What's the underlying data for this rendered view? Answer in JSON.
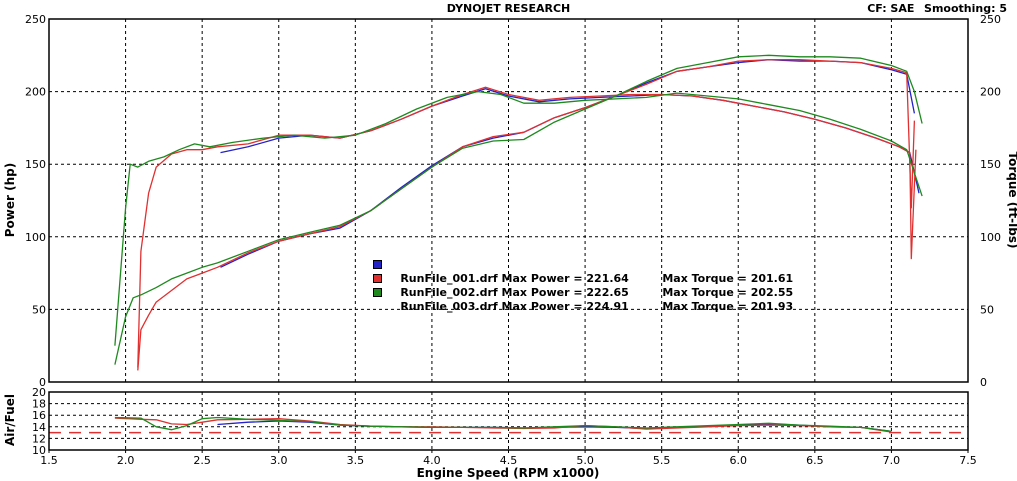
{
  "header": {
    "title": "DYNOJET RESEARCH",
    "cf_label": "CF: SAE",
    "smoothing_label": "Smoothing: 5"
  },
  "chart_data": [
    {
      "type": "line",
      "ylabel_left": "Power (hp)",
      "ylabel_right": "Torque (ft-lbs)",
      "xlim": [
        1.5,
        7.5
      ],
      "ylim": [
        0,
        250
      ],
      "xticks": [
        "1.5",
        "2.0",
        "2.5",
        "3.0",
        "3.5",
        "4.0",
        "4.5",
        "5.0",
        "5.5",
        "6.0",
        "6.5",
        "7.0",
        "7.5"
      ],
      "yticks": [
        "0",
        "50",
        "100",
        "150",
        "200",
        "250"
      ],
      "grid": true,
      "legend": [
        {
          "run": "RunFile_001.drf",
          "power_label": "Max Power = 221.64",
          "torque_label": "Max Torque = 201.61",
          "color": "#2323c8"
        },
        {
          "run": "RunFile_002.drf",
          "power_label": "Max Power = 222.65",
          "torque_label": "Max Torque = 202.55",
          "color": "#e03030"
        },
        {
          "run": "RunFile_003.drf",
          "power_label": "Max Power = 224.91",
          "torque_label": "Max Torque = 201.93",
          "color": "#1e8a1e"
        }
      ],
      "series": [
        {
          "run": "RunFile_001.drf",
          "quantity": "power",
          "color": "#2323c8",
          "x": [
            2.62,
            2.8,
            3.0,
            3.2,
            3.4,
            3.6,
            3.8,
            4.0,
            4.2,
            4.4,
            4.6,
            4.8,
            5.0,
            5.2,
            5.4,
            5.6,
            5.8,
            6.0,
            6.2,
            6.4,
            6.6,
            6.8,
            7.0,
            7.1,
            7.15
          ],
          "y": [
            79,
            88,
            97,
            102,
            106,
            118,
            134,
            149,
            162,
            168,
            172,
            182,
            189,
            197,
            206,
            214,
            217,
            220,
            222,
            221,
            221,
            220,
            215,
            212,
            185
          ]
        },
        {
          "run": "RunFile_001.drf",
          "quantity": "torque",
          "color": "#2323c8",
          "x": [
            2.62,
            2.8,
            3.0,
            3.2,
            3.4,
            3.6,
            3.8,
            4.0,
            4.2,
            4.35,
            4.5,
            4.7,
            4.9,
            5.1,
            5.3,
            5.5,
            5.7,
            5.9,
            6.1,
            6.3,
            6.5,
            6.7,
            6.9,
            7.05,
            7.12,
            7.18
          ],
          "y": [
            158,
            162,
            168,
            170,
            168,
            173,
            181,
            190,
            197,
            202,
            197,
            193,
            195,
            196,
            197,
            198,
            197,
            194,
            190,
            186,
            181,
            175,
            168,
            162,
            158,
            130
          ]
        },
        {
          "run": "RunFile_002.drf",
          "quantity": "power",
          "color": "#e03030",
          "x": [
            2.08,
            2.1,
            2.15,
            2.2,
            2.3,
            2.4,
            2.5,
            2.6,
            2.8,
            3.0,
            3.2,
            3.4,
            3.6,
            3.8,
            4.0,
            4.2,
            4.4,
            4.6,
            4.8,
            5.0,
            5.2,
            5.4,
            5.6,
            5.8,
            6.0,
            6.2,
            6.4,
            6.6,
            6.8,
            7.0,
            7.1,
            7.13,
            7.15
          ],
          "y": [
            8,
            36,
            46,
            55,
            63,
            71,
            75,
            79,
            89,
            97,
            102,
            107,
            118,
            133,
            148,
            162,
            169,
            172,
            182,
            189,
            197,
            205,
            214,
            217,
            221,
            222,
            222,
            221,
            220,
            216,
            213,
            120,
            180
          ]
        },
        {
          "run": "RunFile_002.drf",
          "quantity": "torque",
          "color": "#e03030",
          "x": [
            2.08,
            2.1,
            2.15,
            2.2,
            2.3,
            2.4,
            2.5,
            2.6,
            2.8,
            3.0,
            3.2,
            3.4,
            3.6,
            3.8,
            4.0,
            4.2,
            4.35,
            4.5,
            4.7,
            4.9,
            5.1,
            5.3,
            5.5,
            5.7,
            5.9,
            6.1,
            6.3,
            6.5,
            6.7,
            6.9,
            7.05,
            7.12,
            7.13,
            7.16
          ],
          "y": [
            10,
            90,
            130,
            148,
            157,
            160,
            160,
            162,
            164,
            170,
            170,
            168,
            173,
            181,
            190,
            198,
            203,
            198,
            194,
            196,
            197,
            198,
            198,
            197,
            194,
            190,
            186,
            181,
            175,
            168,
            162,
            158,
            85,
            160
          ]
        },
        {
          "run": "RunFile_003.drf",
          "quantity": "power",
          "color": "#1e8a1e",
          "x": [
            1.93,
            2.0,
            2.05,
            2.1,
            2.2,
            2.3,
            2.4,
            2.5,
            2.6,
            2.8,
            3.0,
            3.2,
            3.4,
            3.6,
            3.8,
            4.0,
            4.2,
            4.4,
            4.6,
            4.8,
            5.0,
            5.2,
            5.4,
            5.6,
            5.8,
            6.0,
            6.2,
            6.4,
            6.6,
            6.8,
            7.0,
            7.1,
            7.15,
            7.2
          ],
          "y": [
            12,
            45,
            58,
            60,
            65,
            71,
            75,
            79,
            82,
            90,
            98,
            103,
            108,
            118,
            133,
            148,
            161,
            166,
            167,
            179,
            188,
            197,
            207,
            216,
            220,
            224,
            225,
            224,
            224,
            223,
            218,
            214,
            200,
            178
          ]
        },
        {
          "run": "RunFile_003.drf",
          "quantity": "torque",
          "color": "#1e8a1e",
          "x": [
            1.93,
            2.0,
            2.03,
            2.08,
            2.15,
            2.25,
            2.35,
            2.45,
            2.55,
            2.7,
            2.9,
            3.1,
            3.3,
            3.5,
            3.7,
            3.9,
            4.1,
            4.3,
            4.45,
            4.6,
            4.8,
            5.0,
            5.2,
            5.4,
            5.6,
            5.8,
            6.0,
            6.2,
            6.4,
            6.6,
            6.8,
            7.0,
            7.1,
            7.2
          ],
          "y": [
            25,
            120,
            150,
            148,
            152,
            155,
            160,
            164,
            162,
            165,
            168,
            170,
            168,
            170,
            178,
            188,
            196,
            200,
            198,
            192,
            192,
            194,
            195,
            196,
            199,
            197,
            195,
            191,
            187,
            181,
            174,
            166,
            160,
            128
          ]
        }
      ]
    },
    {
      "type": "line",
      "ylabel": "Air/Fuel",
      "xlabel": "Engine Speed (RPM x1000)",
      "xlim": [
        1.5,
        7.5
      ],
      "ylim": [
        10,
        20
      ],
      "yticks": [
        "10",
        "12",
        "14",
        "16",
        "18",
        "20"
      ],
      "reference_line": 13.0,
      "grid": true,
      "series": [
        {
          "run": "RunFile_001.drf",
          "color": "#2323c8",
          "x": [
            2.6,
            2.8,
            3.0,
            3.2,
            3.4,
            3.6,
            3.8,
            4.0,
            4.2,
            4.4,
            4.6,
            4.8,
            5.0,
            5.2,
            5.4,
            5.6,
            5.8,
            6.0,
            6.2,
            6.4,
            6.6,
            6.8,
            7.0
          ],
          "y": [
            14.4,
            14.8,
            15.0,
            14.8,
            14.3,
            14.1,
            14.0,
            13.9,
            13.9,
            13.9,
            13.8,
            13.9,
            14.0,
            13.9,
            13.7,
            13.9,
            14.1,
            14.3,
            14.5,
            14.3,
            14.0,
            13.9,
            13.2
          ]
        },
        {
          "run": "RunFile_002.drf",
          "color": "#e03030",
          "x": [
            1.93,
            2.1,
            2.2,
            2.3,
            2.4,
            2.5,
            2.6,
            2.8,
            3.0,
            3.2,
            3.4,
            3.6,
            3.8,
            4.0,
            4.2,
            4.4,
            4.6,
            4.8,
            5.0,
            5.2,
            5.4,
            5.6,
            5.8,
            6.0,
            6.2,
            6.4,
            6.6,
            6.8,
            7.0
          ],
          "y": [
            15.5,
            15.3,
            15.2,
            14.5,
            14.4,
            14.8,
            15.2,
            15.3,
            15.4,
            15.0,
            14.4,
            14.1,
            14.0,
            14.0,
            13.9,
            13.8,
            13.7,
            13.8,
            14.2,
            14.0,
            13.6,
            13.8,
            14.0,
            14.2,
            14.3,
            14.2,
            14.0,
            13.9,
            13.1
          ]
        },
        {
          "run": "RunFile_003.drf",
          "color": "#1e8a1e",
          "x": [
            1.93,
            2.1,
            2.2,
            2.3,
            2.4,
            2.5,
            2.6,
            2.8,
            3.0,
            3.2,
            3.4,
            3.6,
            3.8,
            4.0,
            4.2,
            4.4,
            4.6,
            4.8,
            5.0,
            5.2,
            5.4,
            5.6,
            5.8,
            6.0,
            6.2,
            6.4,
            6.6,
            6.8,
            7.0
          ],
          "y": [
            15.6,
            15.5,
            14.0,
            13.5,
            14.2,
            15.4,
            15.6,
            15.3,
            15.1,
            14.9,
            14.3,
            14.1,
            14.0,
            13.9,
            13.9,
            13.9,
            13.8,
            14.0,
            14.2,
            14.0,
            13.8,
            14.0,
            14.2,
            14.4,
            14.6,
            14.3,
            14.1,
            13.9,
            13.2
          ]
        }
      ]
    }
  ]
}
